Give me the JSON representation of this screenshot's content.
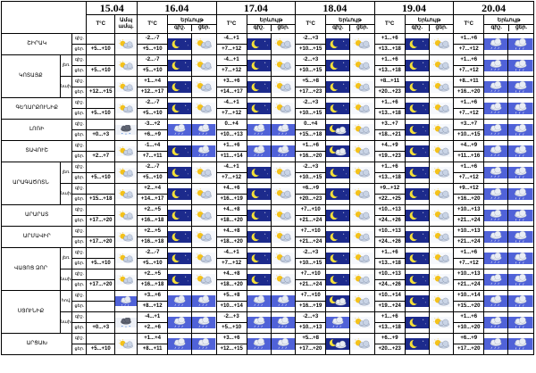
{
  "dates": [
    "15.04",
    "16.04",
    "17.04",
    "18.04",
    "19.04",
    "20.04"
  ],
  "sub_headers": {
    "temp": "T°C",
    "cloud1": "Ամպ",
    "cloud2": "ամպ.",
    "pheno": "Երևույթ",
    "day": "ցեր.",
    "night": "գիշ.",
    "day_short": "ցեր."
  },
  "row_labels": {
    "day": "ցեր.",
    "night": "գիշ."
  },
  "regions": [
    {
      "name": "ՇԻՐԱԿ",
      "zones": [
        {
          "zone": "",
          "night": [
            "",
            "-2...-7",
            "-4...+1",
            "-2...+3",
            "+1...+6",
            "+1...+6"
          ],
          "day": [
            "+5...+10",
            "+5...+10",
            "+7...+12",
            "+10...+15",
            "+13...+18",
            "+7...+12"
          ],
          "icons": [
            [
              "cloud-sun"
            ],
            [
              "moon",
              "cloud-sun"
            ],
            [
              "moon",
              "cloud-sun"
            ],
            [
              "moon",
              "cloud-sun"
            ],
            [
              "moon",
              "cloud-sun"
            ],
            [
              "rain",
              "rain"
            ]
          ]
        }
      ]
    },
    {
      "name": "ԿՈՏԱՅՔ",
      "zones": [
        {
          "zone": "լեռ.",
          "night": [
            "",
            "-2...-7",
            "-4...+1",
            "-2...+3",
            "+1...+6",
            "+1...+6"
          ],
          "day": [
            "+5...+10",
            "+5...+10",
            "+7...+12",
            "+10...+15",
            "+13...+18",
            "+7...+12"
          ],
          "icons": [
            [
              "cloud-sun"
            ],
            [
              "moon",
              "cloud-sun"
            ],
            [
              "moon",
              "cloud-sun"
            ],
            [
              "moon",
              "cloud-sun"
            ],
            [
              "moon",
              "cloud-sun"
            ],
            [
              "rain",
              "rain"
            ]
          ]
        },
        {
          "zone": "նախ.",
          "night": [
            "",
            "+1...+4",
            "+3...+6",
            "+5...+8",
            "+8...+11",
            "+8...+11"
          ],
          "day": [
            "+12...+15",
            "+12...+17",
            "+14...+17",
            "+17...+23",
            "+20...+23",
            "+16...+20"
          ],
          "icons": [
            [
              "cloud-sun"
            ],
            [
              "moon",
              "cloud-sun"
            ],
            [
              "moon",
              "cloud-sun"
            ],
            [
              "moon",
              "cloud-sun"
            ],
            [
              "moon",
              "cloud-sun"
            ],
            [
              "rain",
              "rain"
            ]
          ]
        }
      ]
    },
    {
      "name": "ԳԵՂԱՐՔՈՒՆԻՔ",
      "zones": [
        {
          "zone": "",
          "night": [
            "",
            "-2...-7",
            "-4...+1",
            "-2...+3",
            "+1...+6",
            "+1...+6"
          ],
          "day": [
            "+5...+10",
            "+5...+10",
            "+7...+12",
            "+10...+15",
            "+13...+18",
            "+7...+12"
          ],
          "icons": [
            [
              "cloud-sun"
            ],
            [
              "moon",
              "cloud-sun"
            ],
            [
              "moon",
              "cloud-sun"
            ],
            [
              "moon",
              "cloud-sun"
            ],
            [
              "moon",
              "cloud-sun"
            ],
            [
              "rain",
              "rain"
            ]
          ]
        }
      ]
    },
    {
      "name": "ԼՈՌԻ",
      "zones": [
        {
          "zone": "",
          "night": [
            "",
            "-3...+2",
            "0...+4",
            "0...+4",
            "+3...+7",
            "+3...+7"
          ],
          "day": [
            "+0...+3",
            "+6...+9",
            "+10...+13",
            "+15...+18",
            "+18...+21",
            "+10...+15"
          ],
          "icons": [
            [
              "snow-rain"
            ],
            [
              "rain",
              "rain"
            ],
            [
              "rain",
              "rain"
            ],
            [
              "cloud-moon",
              "cloud-sun"
            ],
            [
              "moon",
              "cloud-sun"
            ],
            [
              "rain",
              "rain"
            ]
          ]
        }
      ]
    },
    {
      "name": "ՏԱՎՈՒՇ",
      "zones": [
        {
          "zone": "",
          "night": [
            "",
            "-1...+4",
            "+1...+6",
            "+1...+6",
            "+4...+9",
            "+4...+9"
          ],
          "day": [
            "+2...+7",
            "+7...+11",
            "+11...+14",
            "+16...+20",
            "+19...+23",
            "+11...+16"
          ],
          "icons": [
            [
              "cloud-sun"
            ],
            [
              "moon",
              "rain"
            ],
            [
              "rain",
              "rain"
            ],
            [
              "cloud-moon",
              "cloud-sun"
            ],
            [
              "moon",
              "cloud-sun"
            ],
            [
              "rain",
              "rain"
            ]
          ]
        }
      ]
    },
    {
      "name": "ԱՐԱԳԱԾՈՏՆ",
      "zones": [
        {
          "zone": "լեռ.",
          "night": [
            "",
            "-2...-7",
            "-4...+1",
            "-2...+3",
            "+1...+6",
            "+1...+6"
          ],
          "day": [
            "+5...+10",
            "+5...+10",
            "+7...+12",
            "+10...+15",
            "+13...+18",
            "+7...+12"
          ],
          "icons": [
            [
              "cloud-sun"
            ],
            [
              "moon",
              "cloud-sun"
            ],
            [
              "moon",
              "cloud-sun"
            ],
            [
              "moon",
              "cloud-sun"
            ],
            [
              "moon",
              "cloud-sun"
            ],
            [
              "rain",
              "rain"
            ]
          ]
        },
        {
          "zone": "նախ.",
          "night": [
            "",
            "+2...+4",
            "+4...+6",
            "+6...+9",
            "+9...+12",
            "+9...+12"
          ],
          "day": [
            "+15...+18",
            "+14...+17",
            "+16...+19",
            "+20...+23",
            "+22...+25",
            "+16...+20"
          ],
          "icons": [
            [
              "cloud-sun"
            ],
            [
              "moon",
              "cloud-sun"
            ],
            [
              "moon",
              "cloud-sun"
            ],
            [
              "moon",
              "cloud-sun"
            ],
            [
              "moon",
              "cloud-sun"
            ],
            [
              "rain",
              "rain"
            ]
          ]
        }
      ]
    },
    {
      "name": "ԱՐԱՐԱՏ",
      "zones": [
        {
          "zone": "",
          "night": [
            "",
            "+2...+5",
            "+4...+8",
            "+7...+10",
            "+10...+13",
            "+10...+13"
          ],
          "day": [
            "+17...+20",
            "+16...+18",
            "+18...+20",
            "+21...+24",
            "+24...+26",
            "+21...+24"
          ],
          "icons": [
            [
              "cloud-sun"
            ],
            [
              "moon",
              "cloud-sun"
            ],
            [
              "moon",
              "cloud-sun"
            ],
            [
              "moon",
              "cloud-sun"
            ],
            [
              "moon",
              "cloud-sun"
            ],
            [
              "rain",
              "rain"
            ]
          ]
        }
      ]
    },
    {
      "name": "ԱՐՄԱՎԻՐ",
      "zones": [
        {
          "zone": "",
          "night": [
            "",
            "+2...+5",
            "+4...+8",
            "+7...+10",
            "+10...+13",
            "+10...+13"
          ],
          "day": [
            "+17...+20",
            "+16...+18",
            "+18...+20",
            "+21...+24",
            "+24...+26",
            "+21...+24"
          ],
          "icons": [
            [
              "cloud-sun"
            ],
            [
              "moon",
              "cloud-sun"
            ],
            [
              "moon",
              "cloud-sun"
            ],
            [
              "moon",
              "cloud-sun"
            ],
            [
              "moon",
              "cloud-sun"
            ],
            [
              "rain",
              "rain"
            ]
          ]
        }
      ]
    },
    {
      "name": "ՎԱՅՈՑ ՁՈՐ",
      "zones": [
        {
          "zone": "լեռ.",
          "night": [
            "",
            "-2...-7",
            "-4...+1",
            "-2...+3",
            "+1...+6",
            "+1...+6"
          ],
          "day": [
            "+5...+10",
            "+5...+10",
            "+7...+12",
            "+10...+15",
            "+13...+18",
            "+7...+12"
          ],
          "icons": [
            [
              "cloud-sun"
            ],
            [
              "moon",
              "cloud-sun"
            ],
            [
              "moon",
              "cloud-sun"
            ],
            [
              "moon",
              "cloud-sun"
            ],
            [
              "moon",
              "cloud-sun"
            ],
            [
              "rain",
              "rain"
            ]
          ]
        },
        {
          "zone": "նախ.",
          "night": [
            "",
            "+2...+5",
            "+4...+8",
            "+7...+10",
            "+10...+13",
            "+10...+13"
          ],
          "day": [
            "+17...+20",
            "+16...+18",
            "+18...+20",
            "+21...+24",
            "+24...+26",
            "+21...+24"
          ],
          "icons": [
            [
              "cloud-sun"
            ],
            [
              "moon",
              "cloud-sun"
            ],
            [
              "moon",
              "cloud-sun"
            ],
            [
              "moon",
              "cloud-sun"
            ],
            [
              "moon",
              "cloud-sun"
            ],
            [
              "rain",
              "rain"
            ]
          ]
        }
      ]
    },
    {
      "name": "ՍՅՈՒՆԻՔ",
      "zones": [
        {
          "zone": "հով.",
          "night": [
            "",
            "+3...+6",
            "+5...+8",
            "+7...+10",
            "+10...+14",
            "+10...+14"
          ],
          "day": [
            "",
            "+8...+12",
            "+10...+14",
            "+16...+19",
            "+19...+24",
            "+15...+20"
          ],
          "icons": [
            [
              "rain"
            ],
            [
              "rain",
              "rain"
            ],
            [
              "rain",
              "rain"
            ],
            [
              "cloud-moon",
              "cloud-sun"
            ],
            [
              "moon",
              "cloud-sun"
            ],
            [
              "rain",
              "rain"
            ]
          ]
        },
        {
          "zone": "նախ.",
          "night": [
            "",
            "-4...+1",
            "-2...+3",
            "-2...+3",
            "+1...+6",
            "+1...+6"
          ],
          "day": [
            "+0...+3",
            "+2...+6",
            "+5...+10",
            "+10...+13",
            "+13...+18",
            "+10...+20"
          ],
          "icons": [
            [
              "snow-rain"
            ],
            [
              "rain",
              "rain"
            ],
            [
              "rain",
              "rain"
            ],
            [
              "rain",
              "cloud-sun"
            ],
            [
              "moon",
              "cloud-sun"
            ],
            [
              "rain",
              "rain"
            ]
          ]
        }
      ]
    },
    {
      "name": "ԱՐՑԱԽ",
      "zones": [
        {
          "zone": "",
          "night": [
            "",
            "+1...+4",
            "+3...+6",
            "+5...+8",
            "+6...+9",
            "+6...+9"
          ],
          "day": [
            "+5...+10",
            "+8...+11",
            "+12...+15",
            "+17...+20",
            "+20...+23",
            "+17...+20"
          ],
          "icons": [
            [
              "cloud-sun"
            ],
            [
              "rain",
              "rain"
            ],
            [
              "rain",
              "rain"
            ],
            [
              "cloud-moon",
              "cloud-sun"
            ],
            [
              "moon",
              "cloud-sun"
            ],
            [
              "rain",
              "rain"
            ]
          ]
        }
      ]
    }
  ]
}
